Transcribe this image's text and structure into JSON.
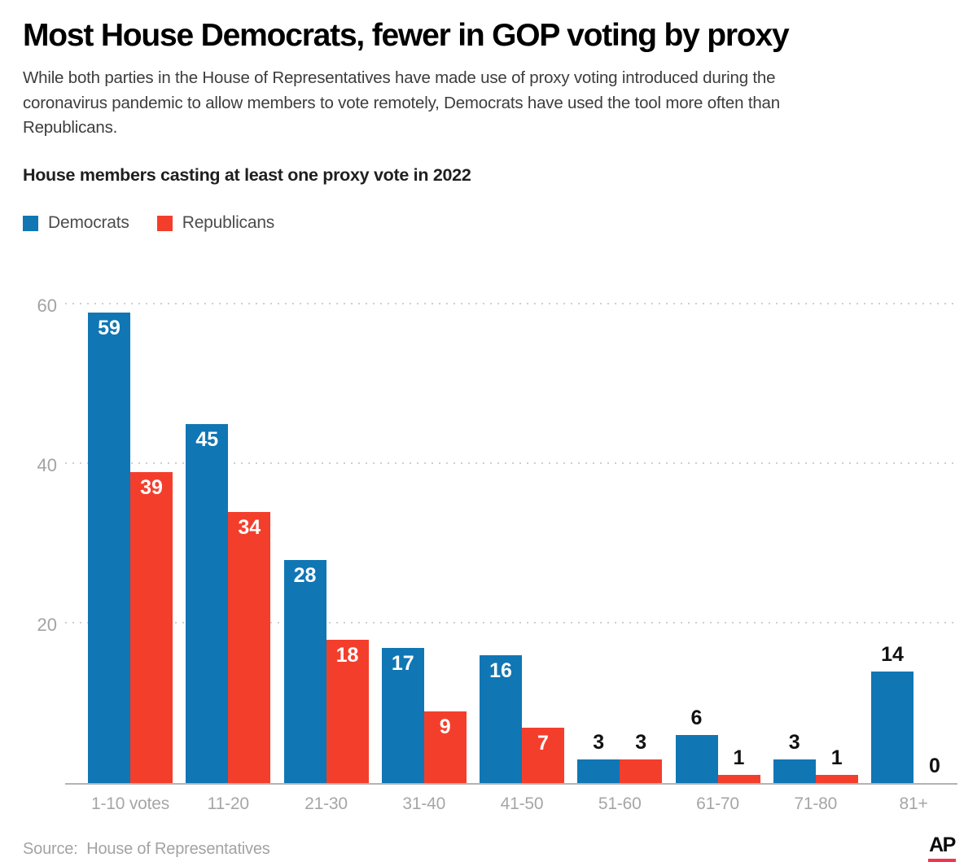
{
  "header": {
    "title": "Most House Democrats, fewer in GOP voting by proxy",
    "subtitle": "While both parties in the House of Representatives have made use of proxy voting introduced during the coronavirus pandemic to allow members to vote remotely, Democrats have used the tool more often than Republicans.",
    "chart_label": "House members casting at least one proxy vote in 2022"
  },
  "legend": {
    "items": [
      {
        "label": "Democrats",
        "color": "#1076b4"
      },
      {
        "label": "Republicans",
        "color": "#f43e2c"
      }
    ]
  },
  "chart_data": {
    "type": "bar",
    "title": "House members casting at least one proxy vote in 2022",
    "categories": [
      "1-10 votes",
      "11-20",
      "21-30",
      "31-40",
      "41-50",
      "51-60",
      "61-70",
      "71-80",
      "81+"
    ],
    "series": [
      {
        "name": "Democrats",
        "color": "#1076b4",
        "values": [
          59,
          45,
          28,
          17,
          16,
          3,
          6,
          3,
          14
        ],
        "label_inside": [
          true,
          true,
          true,
          true,
          true,
          false,
          false,
          false,
          false
        ]
      },
      {
        "name": "Republicans",
        "color": "#f43e2c",
        "values": [
          39,
          34,
          18,
          9,
          7,
          3,
          1,
          1,
          0
        ],
        "label_inside": [
          true,
          true,
          true,
          true,
          true,
          false,
          false,
          false,
          false
        ]
      }
    ],
    "xlabel": "",
    "ylabel": "",
    "ylim": [
      0,
      62
    ],
    "yticks": [
      20,
      40,
      60
    ],
    "grid": "horizontal-dotted",
    "legend_position": "top-left",
    "value_labels": true
  },
  "footer": {
    "source": "Source:  House of Representatives",
    "logo_text": "AP",
    "logo_bar_color": "#f23352"
  }
}
